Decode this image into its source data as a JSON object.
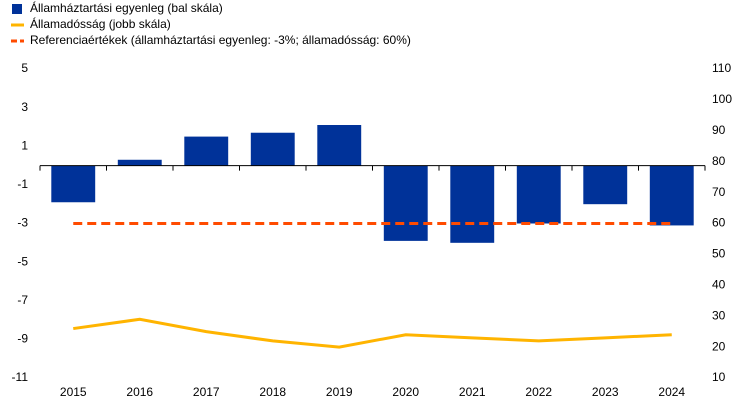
{
  "chart_data": {
    "type": "bar",
    "categories": [
      "2015",
      "2016",
      "2017",
      "2018",
      "2019",
      "2020",
      "2021",
      "2022",
      "2023",
      "2024"
    ],
    "series": [
      {
        "name": "Államháztartási egyenleg (bal skála)",
        "type": "bar",
        "axis": "y",
        "color": "#003299",
        "values": [
          -1.9,
          0.3,
          1.5,
          1.7,
          2.1,
          -3.9,
          -4.0,
          -3.0,
          -2.0,
          -3.1
        ]
      },
      {
        "name": "Államadósság (jobb skála)",
        "type": "line",
        "axis": "y2",
        "color": "#ffb400",
        "values": [
          26,
          29,
          25,
          22,
          20,
          24,
          23,
          22,
          23,
          24
        ]
      },
      {
        "name": "Referenciaértékek (államháztartási egyenleg: -3%; államadósság: 60%)",
        "type": "line",
        "axis": "y",
        "color": "#ff4b00",
        "dashed": true,
        "values": [
          -3,
          -3,
          -3,
          -3,
          -3,
          -3,
          -3,
          -3,
          -3,
          -3
        ]
      }
    ],
    "ylim": [
      -11,
      5
    ],
    "yticks": [
      5,
      3,
      1,
      -1,
      -3,
      -5,
      -7,
      -9,
      -11
    ],
    "y2lim": [
      10,
      110
    ],
    "y2ticks": [
      110,
      100,
      90,
      80,
      70,
      60,
      50,
      40,
      30,
      20,
      10
    ],
    "grid": false,
    "legend": "top-left"
  }
}
